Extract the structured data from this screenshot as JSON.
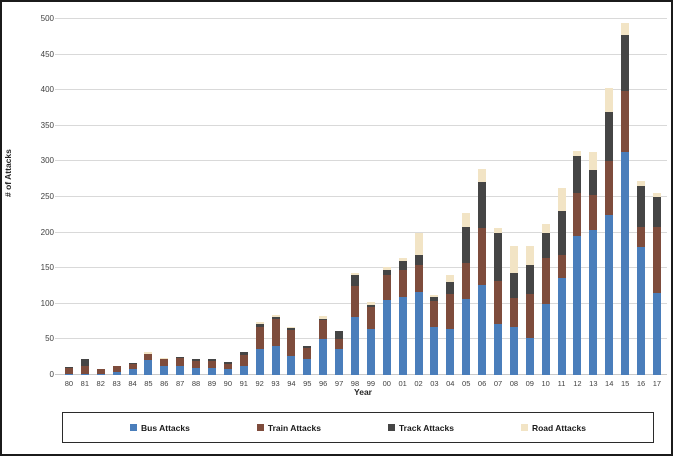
{
  "chart_data": {
    "type": "bar",
    "stacked": true,
    "title": "",
    "xlabel": "Year",
    "ylabel": "# of Attacks",
    "ylim": [
      0,
      500
    ],
    "ytick_step": 50,
    "grid": true,
    "legend_position": "bottom",
    "categories": [
      "80",
      "81",
      "82",
      "83",
      "84",
      "85",
      "86",
      "87",
      "88",
      "89",
      "90",
      "91",
      "92",
      "93",
      "94",
      "95",
      "96",
      "97",
      "98",
      "99",
      "00",
      "01",
      "02",
      "03",
      "04",
      "05",
      "06",
      "07",
      "08",
      "09",
      "10",
      "11",
      "12",
      "13",
      "14",
      "15",
      "16",
      "17"
    ],
    "series": [
      {
        "name": "Bus Attacks",
        "color": "#4A7EBB",
        "values": [
          2,
          2,
          1,
          4,
          8,
          21,
          12,
          13,
          10,
          10,
          8,
          13,
          36,
          41,
          27,
          23,
          51,
          36,
          82,
          64,
          106,
          110,
          117,
          68,
          65,
          107,
          126,
          71,
          68,
          52,
          100,
          136,
          195,
          204,
          225,
          313,
          180,
          115
        ]
      },
      {
        "name": "Train Attacks",
        "color": "#7E4C3C",
        "values": [
          8,
          11,
          7,
          8,
          7,
          8,
          11,
          11,
          10,
          10,
          8,
          15,
          32,
          38,
          36,
          15,
          26,
          15,
          43,
          32,
          34,
          38,
          37,
          36,
          49,
          50,
          80,
          61,
          40,
          62,
          64,
          33,
          60,
          49,
          75,
          86,
          28,
          93
        ]
      },
      {
        "name": "Track Attacks",
        "color": "#454545",
        "values": [
          1,
          9,
          1,
          0,
          2,
          1,
          0,
          1,
          3,
          3,
          2,
          4,
          4,
          3,
          3,
          3,
          2,
          11,
          16,
          2,
          8,
          12,
          14,
          6,
          16,
          51,
          65,
          68,
          36,
          41,
          35,
          61,
          52,
          35,
          70,
          78,
          58,
          42
        ]
      },
      {
        "name": "Road Attacks",
        "color": "#F2E4C5",
        "values": [
          0,
          0,
          0,
          0,
          0,
          2,
          1,
          1,
          0,
          0,
          0,
          0,
          3,
          3,
          1,
          0,
          4,
          0,
          2,
          4,
          4,
          5,
          32,
          2,
          10,
          20,
          19,
          7,
          37,
          26,
          13,
          32,
          8,
          25,
          33,
          18,
          6,
          5
        ]
      }
    ]
  },
  "frame": {
    "background": "#ffffff",
    "border_color": "#1b1b1b",
    "gridline_color": "#d9d9d9",
    "tick_label_color": "#404040"
  }
}
